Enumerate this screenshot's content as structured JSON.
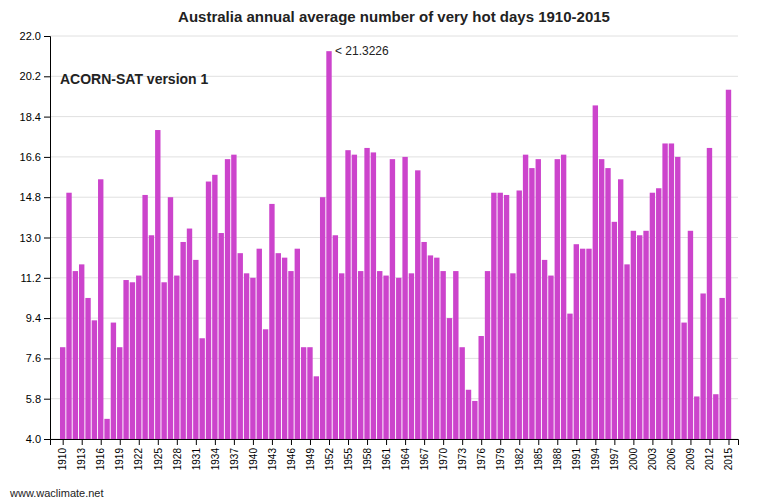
{
  "chart_data": {
    "type": "bar",
    "title": "Australia annual average number of very hot days 1910-2015",
    "x": [
      1910,
      1911,
      1912,
      1913,
      1914,
      1915,
      1916,
      1917,
      1918,
      1919,
      1920,
      1921,
      1922,
      1923,
      1924,
      1925,
      1926,
      1927,
      1928,
      1929,
      1930,
      1931,
      1932,
      1933,
      1934,
      1935,
      1936,
      1937,
      1938,
      1939,
      1940,
      1941,
      1942,
      1943,
      1944,
      1945,
      1946,
      1947,
      1948,
      1949,
      1950,
      1951,
      1952,
      1953,
      1954,
      1955,
      1956,
      1957,
      1958,
      1959,
      1960,
      1961,
      1962,
      1963,
      1964,
      1965,
      1966,
      1967,
      1968,
      1969,
      1970,
      1971,
      1972,
      1973,
      1974,
      1975,
      1976,
      1977,
      1978,
      1979,
      1980,
      1981,
      1982,
      1983,
      1984,
      1985,
      1986,
      1987,
      1988,
      1989,
      1990,
      1991,
      1992,
      1993,
      1994,
      1995,
      1996,
      1997,
      1998,
      1999,
      2000,
      2001,
      2002,
      2003,
      2004,
      2005,
      2006,
      2007,
      2008,
      2009,
      2010,
      2011,
      2012,
      2013,
      2014,
      2015
    ],
    "values": [
      8.1,
      15.0,
      11.5,
      11.8,
      10.3,
      9.3,
      15.6,
      4.9,
      9.2,
      8.1,
      11.1,
      11.0,
      11.3,
      14.9,
      13.1,
      17.8,
      11.0,
      14.8,
      11.3,
      12.8,
      13.4,
      12.0,
      8.5,
      15.5,
      15.8,
      13.2,
      16.5,
      16.7,
      12.3,
      11.4,
      11.2,
      12.5,
      8.9,
      14.5,
      12.3,
      12.1,
      11.5,
      12.5,
      8.1,
      8.1,
      6.8,
      14.8,
      21.3226,
      13.1,
      11.4,
      16.9,
      16.7,
      11.5,
      17.0,
      16.8,
      11.5,
      11.3,
      16.5,
      11.2,
      16.6,
      11.4,
      16.0,
      12.8,
      12.2,
      12.1,
      11.5,
      9.4,
      11.5,
      8.1,
      6.2,
      5.7,
      8.6,
      11.5,
      15.0,
      15.0,
      14.9,
      11.4,
      15.1,
      16.7,
      16.1,
      16.5,
      12.0,
      11.3,
      16.5,
      16.7,
      9.6,
      12.7,
      12.5,
      12.5,
      18.9,
      16.5,
      16.1,
      13.7,
      15.6,
      11.8,
      13.3,
      13.1,
      13.3,
      15.0,
      15.2,
      17.2,
      17.2,
      16.6,
      9.2,
      13.3,
      5.9,
      10.5,
      17.0,
      6.0,
      10.3,
      19.6
    ],
    "color": "#CC44CC",
    "xlim": [
      1908,
      2016.5
    ],
    "xticks": [
      1910,
      1913,
      1916,
      1919,
      1922,
      1925,
      1928,
      1931,
      1934,
      1937,
      1940,
      1943,
      1946,
      1949,
      1952,
      1955,
      1958,
      1961,
      1964,
      1967,
      1970,
      1973,
      1976,
      1979,
      1982,
      1985,
      1988,
      1991,
      1994,
      1997,
      2000,
      2003,
      2006,
      2009,
      2012,
      2015
    ],
    "ylim": [
      4,
      22
    ],
    "yticks": [
      {
        "value": 4,
        "label": "4.0"
      },
      5.8,
      7.6,
      9.4,
      11.2,
      {
        "value": 13.0,
        "label": "13.0"
      },
      14.8,
      16.6,
      18.4,
      20.2,
      {
        "value": 22.0,
        "label": "22.0"
      }
    ],
    "grid": true,
    "annotations": [
      {
        "text": "< 21.3226",
        "x": 1952,
        "y": 21.3226
      },
      {
        "text": "ACORN-SAT version 1"
      },
      {
        "text": "www.waclimate.net"
      }
    ]
  }
}
